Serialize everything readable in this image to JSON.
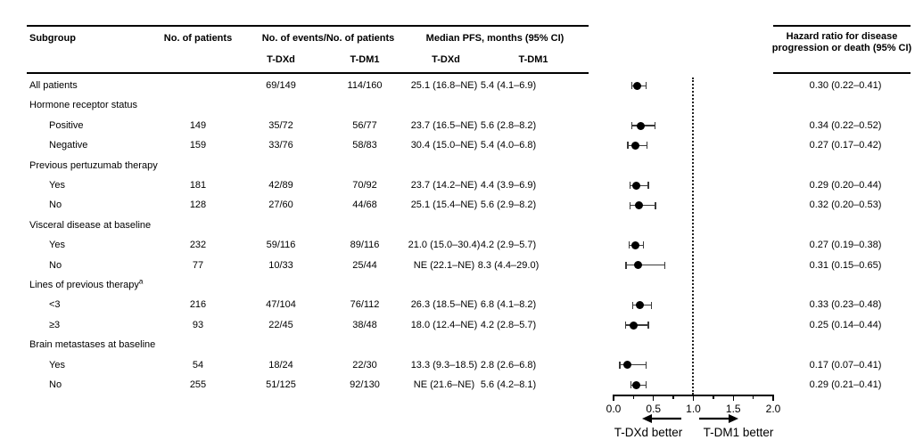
{
  "header": {
    "subgroup": "Subgroup",
    "no_of_patients": "No. of patients",
    "events_group": "No. of events/No. of patients",
    "pfs_group": "Median PFS, months (95% CI)",
    "col_tdxd": "T-DXd",
    "col_tdm1": "T-DM1",
    "hazard_ratio": "Hazard ratio for disease progression or death (95% CI)"
  },
  "rows": [
    {
      "label": "All patients",
      "indent": false,
      "n": "",
      "ev_tdxd": "69/149",
      "ev_tdm1": "114/160",
      "pfs_tdxd": "25.1 (16.8–NE)",
      "pfs_tdm1": "5.4 (4.1–6.9)",
      "hr_text": "0.30 (0.22–0.41)",
      "hr": 0.3,
      "lo": 0.22,
      "hi": 0.41
    },
    {
      "label": "Hormone receptor status",
      "group": true
    },
    {
      "label": "Positive",
      "indent": true,
      "n": "149",
      "ev_tdxd": "35/72",
      "ev_tdm1": "56/77",
      "pfs_tdxd": "23.7 (16.5–NE)",
      "pfs_tdm1": "5.6 (2.8–8.2)",
      "hr_text": "0.34 (0.22–0.52)",
      "hr": 0.34,
      "lo": 0.22,
      "hi": 0.52
    },
    {
      "label": "Negative",
      "indent": true,
      "n": "159",
      "ev_tdxd": "33/76",
      "ev_tdm1": "58/83",
      "pfs_tdxd": "30.4 (15.0–NE)",
      "pfs_tdm1": "5.4 (4.0–6.8)",
      "hr_text": "0.27 (0.17–0.42)",
      "hr": 0.27,
      "lo": 0.17,
      "hi": 0.42
    },
    {
      "label": "Previous pertuzumab therapy",
      "group": true
    },
    {
      "label": "Yes",
      "indent": true,
      "n": "181",
      "ev_tdxd": "42/89",
      "ev_tdm1": "70/92",
      "pfs_tdxd": "23.7 (14.2–NE)",
      "pfs_tdm1": "4.4 (3.9–6.9)",
      "hr_text": "0.29 (0.20–0.44)",
      "hr": 0.29,
      "lo": 0.2,
      "hi": 0.44
    },
    {
      "label": "No",
      "indent": true,
      "n": "128",
      "ev_tdxd": "27/60",
      "ev_tdm1": "44/68",
      "pfs_tdxd": "25.1 (15.4–NE)",
      "pfs_tdm1": "5.6 (2.9–8.2)",
      "hr_text": "0.32 (0.20–0.53)",
      "hr": 0.32,
      "lo": 0.2,
      "hi": 0.53
    },
    {
      "label": "Visceral disease at baseline",
      "group": true
    },
    {
      "label": "Yes",
      "indent": true,
      "n": "232",
      "ev_tdxd": "59/116",
      "ev_tdm1": "89/116",
      "pfs_tdxd": "21.0 (15.0–30.4)",
      "pfs_tdm1": "4.2 (2.9–5.7)",
      "hr_text": "0.27 (0.19–0.38)",
      "hr": 0.27,
      "lo": 0.19,
      "hi": 0.38
    },
    {
      "label": "No",
      "indent": true,
      "n": "77",
      "ev_tdxd": "10/33",
      "ev_tdm1": "25/44",
      "pfs_tdxd": "NE (22.1–NE)",
      "pfs_tdm1": "8.3 (4.4–29.0)",
      "hr_text": "0.31 (0.15–0.65)",
      "hr": 0.31,
      "lo": 0.15,
      "hi": 0.65
    },
    {
      "label": "Lines of previous therapy",
      "sup": "a",
      "group": true
    },
    {
      "label": "<3",
      "indent": true,
      "n": "216",
      "ev_tdxd": "47/104",
      "ev_tdm1": "76/112",
      "pfs_tdxd": "26.3 (18.5–NE)",
      "pfs_tdm1": "6.8 (4.1–8.2)",
      "hr_text": "0.33 (0.23–0.48)",
      "hr": 0.33,
      "lo": 0.23,
      "hi": 0.48
    },
    {
      "label": "≥3",
      "indent": true,
      "n": "93",
      "ev_tdxd": "22/45",
      "ev_tdm1": "38/48",
      "pfs_tdxd": "18.0 (12.4–NE)",
      "pfs_tdm1": "4.2 (2.8–5.7)",
      "hr_text": "0.25 (0.14–0.44)",
      "hr": 0.25,
      "lo": 0.14,
      "hi": 0.44
    },
    {
      "label": "Brain metastases at baseline",
      "group": true
    },
    {
      "label": "Yes",
      "indent": true,
      "n": "54",
      "ev_tdxd": "18/24",
      "ev_tdm1": "22/30",
      "pfs_tdxd": "13.3 (9.3–18.5)",
      "pfs_tdm1": "2.8 (2.6–6.8)",
      "hr_text": "0.17 (0.07–0.41)",
      "hr": 0.17,
      "lo": 0.07,
      "hi": 0.41
    },
    {
      "label": "No",
      "indent": true,
      "n": "255",
      "ev_tdxd": "51/125",
      "ev_tdm1": "92/130",
      "pfs_tdxd": "NE (21.6–NE)",
      "pfs_tdm1": "5.6 (4.2–8.1)",
      "hr_text": "0.29 (0.21–0.41)",
      "hr": 0.29,
      "lo": 0.21,
      "hi": 0.41
    }
  ],
  "axis": {
    "ticks": [
      "0.0",
      "0.5",
      "1.0",
      "1.5",
      "2.0"
    ],
    "minor_ticks": [
      0.25,
      0.75,
      1.25,
      1.75
    ],
    "min": 0.0,
    "max": 2.0,
    "reference_line": 1.0,
    "left_label": "T-DXd better",
    "right_label": "T-DM1 better"
  },
  "chart_data": {
    "type": "scatter",
    "subtype": "forest-plot",
    "title": "Hazard ratio for disease progression or death (95% CI)",
    "xlabel": "Hazard ratio",
    "xlim": [
      0.0,
      2.0
    ],
    "xticks": [
      0.0,
      0.5,
      1.0,
      1.5,
      2.0
    ],
    "reference_line": 1.0,
    "annotations": [
      "T-DXd better",
      "T-DM1 better"
    ],
    "points": [
      {
        "subgroup": "All patients",
        "hr": 0.3,
        "ci": [
          0.22,
          0.41
        ]
      },
      {
        "subgroup": "Hormone receptor status: Positive",
        "hr": 0.34,
        "ci": [
          0.22,
          0.52
        ]
      },
      {
        "subgroup": "Hormone receptor status: Negative",
        "hr": 0.27,
        "ci": [
          0.17,
          0.42
        ]
      },
      {
        "subgroup": "Previous pertuzumab therapy: Yes",
        "hr": 0.29,
        "ci": [
          0.2,
          0.44
        ]
      },
      {
        "subgroup": "Previous pertuzumab therapy: No",
        "hr": 0.32,
        "ci": [
          0.2,
          0.53
        ]
      },
      {
        "subgroup": "Visceral disease at baseline: Yes",
        "hr": 0.27,
        "ci": [
          0.19,
          0.38
        ]
      },
      {
        "subgroup": "Visceral disease at baseline: No",
        "hr": 0.31,
        "ci": [
          0.15,
          0.65
        ]
      },
      {
        "subgroup": "Lines of previous therapy: <3",
        "hr": 0.33,
        "ci": [
          0.23,
          0.48
        ]
      },
      {
        "subgroup": "Lines of previous therapy: ≥3",
        "hr": 0.25,
        "ci": [
          0.14,
          0.44
        ]
      },
      {
        "subgroup": "Brain metastases at baseline: Yes",
        "hr": 0.17,
        "ci": [
          0.07,
          0.41
        ]
      },
      {
        "subgroup": "Brain metastases at baseline: No",
        "hr": 0.29,
        "ci": [
          0.21,
          0.41
        ]
      }
    ]
  }
}
